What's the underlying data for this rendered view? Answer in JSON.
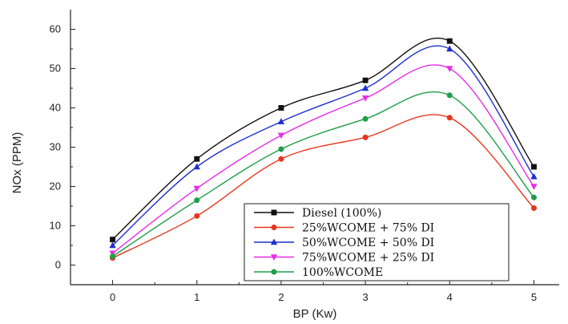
{
  "chart_data": {
    "type": "line",
    "title": "",
    "xlabel": "BP (Kw)",
    "ylabel": "NOx (PPM)",
    "xlim": [
      -0.5,
      5.3
    ],
    "ylim": [
      -5,
      65
    ],
    "x_ticks": [
      0,
      1,
      2,
      3,
      4,
      5
    ],
    "y_ticks": [
      0,
      10,
      20,
      30,
      40,
      50,
      60
    ],
    "grid": false,
    "legend_position": "bottom-right",
    "x": [
      0,
      1,
      2,
      3,
      4,
      5
    ],
    "series": [
      {
        "name": "Diesel (100%)",
        "color": "#111111",
        "marker": "square",
        "values": [
          6.5,
          27,
          40,
          47,
          57,
          25
        ]
      },
      {
        "name": "25%WCOME + 75% DI",
        "color": "#e8361e",
        "marker": "circle",
        "values": [
          1.8,
          12.5,
          27,
          32.5,
          37.5,
          14.5
        ]
      },
      {
        "name": "50%WCOME + 50% DI",
        "color": "#1f2fcc",
        "marker": "triangle-up",
        "values": [
          5,
          25,
          36.5,
          45,
          55,
          22.5
        ]
      },
      {
        "name": "75%WCOME + 25% DI",
        "color": "#e62ee6",
        "marker": "triangle-down",
        "values": [
          3,
          19.5,
          33,
          42.5,
          50,
          20
        ]
      },
      {
        "name": "100%WCOME",
        "color": "#1f9e4a",
        "marker": "circle",
        "values": [
          2.2,
          16.5,
          29.5,
          37.2,
          43.2,
          17.2
        ]
      }
    ]
  }
}
